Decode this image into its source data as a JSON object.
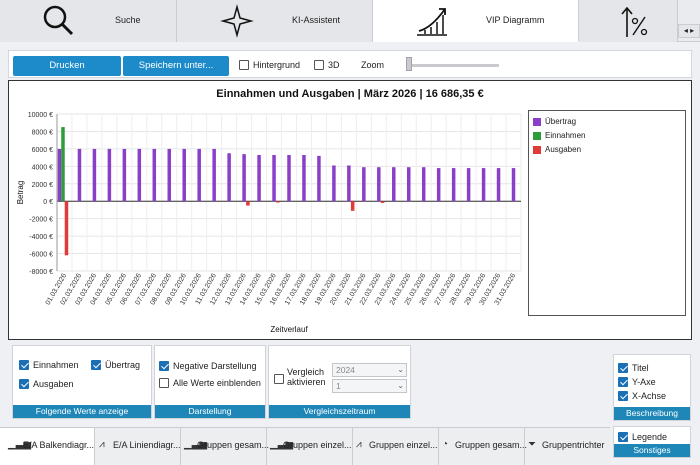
{
  "top_tabs": [
    {
      "label": "Suche",
      "icon": "search-icon"
    },
    {
      "label": "KI-Assistent",
      "icon": "ai-sparkle-icon"
    },
    {
      "label": "VIP Diagramm",
      "icon": "trend-chart-icon",
      "active": true
    },
    {
      "label": "",
      "icon": "percent-arrow-icon"
    }
  ],
  "scroll_arrows": "◂ ▸",
  "toolbar": {
    "print_label": "Drucken",
    "save_label": "Speichern unter...",
    "background_label": "Hintergrund",
    "threed_label": "3D",
    "zoom_label": "Zoom"
  },
  "chart_data": {
    "type": "bar",
    "title": "Einnahmen und Ausgaben | März 2026 | 16 686,35 €",
    "xlabel": "Zeitverlauf",
    "ylabel": "Betrag",
    "ylim": [
      -8000,
      10000
    ],
    "yticks": [
      "10000 €",
      "8000 €",
      "6000 €",
      "4000 €",
      "2000 €",
      "0 €",
      "-2000 €",
      "-4000 €",
      "-6000 €",
      "-8000 €"
    ],
    "categories": [
      "01.03.2026",
      "02.03.2026",
      "03.03.2026",
      "04.03.2026",
      "05.03.2026",
      "06.03.2026",
      "07.03.2026",
      "08.03.2026",
      "09.03.2026",
      "10.03.2026",
      "11.03.2026",
      "12.03.2026",
      "13.03.2026",
      "14.03.2026",
      "15.03.2026",
      "16.03.2026",
      "17.03.2026",
      "18.03.2026",
      "19.03.2026",
      "20.03.2026",
      "21.03.2026",
      "22.03.2026",
      "23.03.2026",
      "24.03.2026",
      "25.03.2026",
      "26.03.2026",
      "27.03.2026",
      "28.03.2026",
      "29.03.2026",
      "30.03.2026",
      "31.03.2026"
    ],
    "series": [
      {
        "name": "Übertrag",
        "color": "#8a3fc8",
        "values": [
          6000,
          6000,
          6000,
          6000,
          6000,
          6000,
          6000,
          6000,
          6000,
          6000,
          6000,
          5500,
          5400,
          5300,
          5300,
          5300,
          5300,
          5200,
          4100,
          4100,
          3900,
          3900,
          3900,
          3900,
          3900,
          3800,
          3800,
          3800,
          3800,
          3800,
          3800
        ]
      },
      {
        "name": "Einnahmen",
        "color": "#2e9c3a",
        "values": [
          8500,
          0,
          0,
          0,
          0,
          0,
          0,
          0,
          0,
          0,
          0,
          0,
          0,
          0,
          0,
          0,
          0,
          0,
          0,
          0,
          0,
          0,
          0,
          0,
          0,
          0,
          0,
          0,
          0,
          0,
          0
        ]
      },
      {
        "name": "Ausgaben",
        "color": "#e03a3a",
        "values": [
          -6200,
          0,
          0,
          0,
          0,
          0,
          0,
          0,
          0,
          0,
          0,
          0,
          -500,
          0,
          -150,
          0,
          0,
          0,
          0,
          -1100,
          0,
          -200,
          0,
          0,
          0,
          0,
          0,
          0,
          0,
          0,
          0
        ]
      }
    ],
    "legend_position": "right",
    "grid": true
  },
  "groups": {
    "werte": {
      "title": "Folgende Werte anzeige",
      "items": [
        {
          "label": "Einnahmen",
          "checked": true
        },
        {
          "label": "Übertrag",
          "checked": true
        },
        {
          "label": "Ausgaben",
          "checked": true
        }
      ]
    },
    "darstellung": {
      "title": "Darstellung",
      "items": [
        {
          "label": "Negative Darstellung",
          "checked": true
        },
        {
          "label": "Alle Werte einblenden",
          "checked": false
        }
      ]
    },
    "vergleich": {
      "title": "Vergleichszeitraum",
      "checkbox_label_1": "Vergleich",
      "checkbox_label_2": "aktivieren",
      "checked": false,
      "year": "2024",
      "month": "1"
    },
    "beschreibung": {
      "title": "Beschreibung",
      "items": [
        {
          "label": "Titel",
          "checked": true
        },
        {
          "label": "Y-Axe",
          "checked": true
        },
        {
          "label": "X-Achse",
          "checked": true
        }
      ]
    },
    "sonstiges": {
      "title": "Sonstiges",
      "items": [
        {
          "label": "Legende",
          "checked": true
        }
      ]
    }
  },
  "bottom_tabs": [
    {
      "label": "E/A Balkendiagr...",
      "icon": "bar-chart-icon",
      "active": true
    },
    {
      "label": "E/A Liniendiagr...",
      "icon": "line-chart-icon"
    },
    {
      "label": "Gruppen gesam...",
      "icon": "bar-chart-icon"
    },
    {
      "label": "Gruppen einzel...",
      "icon": "bar-chart-icon"
    },
    {
      "label": "Gruppen einzel...",
      "icon": "line-chart-icon"
    },
    {
      "label": "Gruppen gesam...",
      "icon": "pie-chart-icon"
    },
    {
      "label": "Gruppentrichter",
      "icon": "funnel-icon"
    }
  ]
}
